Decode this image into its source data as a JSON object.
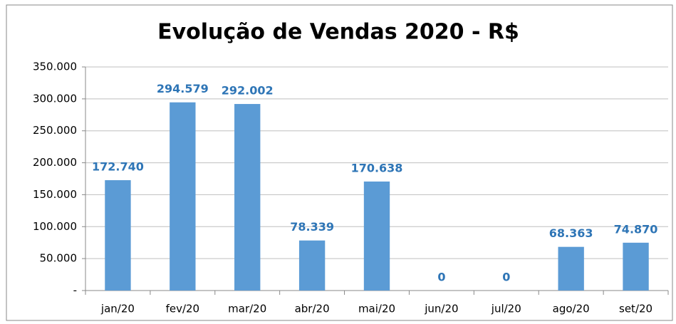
{
  "chart_data": {
    "type": "bar",
    "title": "Evolução de Vendas 2020 - R$",
    "categories": [
      "jan/20",
      "fev/20",
      "mar/20",
      "abr/20",
      "mai/20",
      "jun/20",
      "jul/20",
      "ago/20",
      "set/20"
    ],
    "values": [
      172740,
      294579,
      292002,
      78339,
      170638,
      0,
      0,
      68363,
      74870
    ],
    "value_labels": [
      "172.740",
      "294.579",
      "292.002",
      "78.339",
      "170.638",
      "0",
      "0",
      "68.363",
      "74.870"
    ],
    "color": "#5b9bd5",
    "ylim": [
      0,
      350000
    ],
    "yticks": [
      {
        "value": 0,
        "label": "-"
      },
      {
        "value": 50000,
        "label": "50.000"
      },
      {
        "value": 100000,
        "label": "100.000"
      },
      {
        "value": 150000,
        "label": "150.000"
      },
      {
        "value": 200000,
        "label": "200.000"
      },
      {
        "value": 250000,
        "label": "250.000"
      },
      {
        "value": 300000,
        "label": "300.000"
      },
      {
        "value": 350000,
        "label": "350.000"
      }
    ],
    "grid": true
  }
}
